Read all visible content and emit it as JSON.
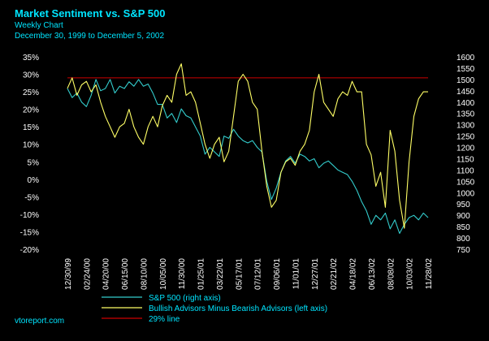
{
  "chart_data": {
    "type": "line",
    "title": "Market Sentiment vs. S&P 500",
    "subtitle": "Weekly Chart",
    "date_range": "December 30, 1999 to December 5, 2002",
    "source": "vtoreport.com",
    "x_tick_labels": [
      "12/30/99",
      "02/24/00",
      "04/20/00",
      "06/15/00",
      "08/10/00",
      "10/05/00",
      "11/30/00",
      "01/25/01",
      "03/22/01",
      "05/17/01",
      "07/12/01",
      "09/06/01",
      "11/01/01",
      "12/27/01",
      "02/21/02",
      "04/18/02",
      "06/13/02",
      "08/08/02",
      "10/03/02",
      "11/28/02"
    ],
    "left_axis": {
      "ticks": [
        "35%",
        "30%",
        "25%",
        "20%",
        "15%",
        "10%",
        "5%",
        "0%",
        "-5%",
        "-10%",
        "-15%",
        "-20%"
      ],
      "ylim": [
        -20,
        35
      ]
    },
    "right_axis": {
      "ticks": [
        "1600",
        "1550",
        "1500",
        "1450",
        "1400",
        "1350",
        "1300",
        "1250",
        "1200",
        "1150",
        "1100",
        "1050",
        "1000",
        "950",
        "900",
        "850",
        "800",
        "750"
      ],
      "ylim": [
        750,
        1600
      ]
    },
    "x_range": [
      0,
      19
    ],
    "series": [
      {
        "name": "S&P 500 (right axis)",
        "axis": "right",
        "color": "#33cccc",
        "x": [
          0,
          0.25,
          0.5,
          0.75,
          1,
          1.25,
          1.5,
          1.75,
          2,
          2.25,
          2.5,
          2.75,
          3,
          3.25,
          3.5,
          3.75,
          4,
          4.25,
          4.5,
          4.75,
          5,
          5.25,
          5.5,
          5.75,
          6,
          6.25,
          6.5,
          6.75,
          7,
          7.25,
          7.5,
          7.75,
          8,
          8.25,
          8.5,
          8.75,
          9,
          9.25,
          9.5,
          9.75,
          10,
          10.25,
          10.5,
          10.75,
          11,
          11.25,
          11.5,
          11.75,
          12,
          12.25,
          12.5,
          12.75,
          13,
          13.25,
          13.5,
          13.75,
          14,
          14.25,
          14.5,
          14.75,
          15,
          15.25,
          15.5,
          15.75,
          16,
          16.25,
          16.5,
          16.75,
          17,
          17.25,
          17.5,
          17.75,
          18,
          18.25,
          18.5,
          18.75,
          19
        ],
        "values": [
          1460,
          1420,
          1440,
          1400,
          1380,
          1430,
          1500,
          1450,
          1460,
          1500,
          1440,
          1470,
          1460,
          1490,
          1470,
          1500,
          1470,
          1480,
          1440,
          1390,
          1390,
          1330,
          1350,
          1310,
          1370,
          1340,
          1330,
          1290,
          1250,
          1170,
          1200,
          1180,
          1160,
          1250,
          1240,
          1280,
          1250,
          1230,
          1220,
          1230,
          1200,
          1180,
          1050,
          970,
          1020,
          1090,
          1140,
          1160,
          1130,
          1170,
          1160,
          1140,
          1150,
          1110,
          1130,
          1140,
          1120,
          1100,
          1090,
          1080,
          1050,
          1010,
          960,
          920,
          860,
          900,
          880,
          910,
          840,
          880,
          820,
          860,
          890,
          900,
          880,
          910,
          890
        ]
      },
      {
        "name": "Bullish Advisors Minus Bearish Advisors (left axis)",
        "axis": "left",
        "color": "#ffff66",
        "x": [
          0,
          0.25,
          0.5,
          0.75,
          1,
          1.25,
          1.5,
          1.75,
          2,
          2.25,
          2.5,
          2.75,
          3,
          3.25,
          3.5,
          3.75,
          4,
          4.25,
          4.5,
          4.75,
          5,
          5.25,
          5.5,
          5.75,
          6,
          6.25,
          6.5,
          6.75,
          7,
          7.25,
          7.5,
          7.75,
          8,
          8.25,
          8.5,
          8.75,
          9,
          9.25,
          9.5,
          9.75,
          10,
          10.25,
          10.5,
          10.75,
          11,
          11.25,
          11.5,
          11.75,
          12,
          12.25,
          12.5,
          12.75,
          13,
          13.25,
          13.5,
          13.75,
          14,
          14.25,
          14.5,
          14.75,
          15,
          15.25,
          15.5,
          15.75,
          16,
          16.25,
          16.5,
          16.75,
          17,
          17.25,
          17.5,
          17.75,
          18,
          18.25,
          18.5,
          18.75,
          19
        ],
        "values": [
          26,
          29,
          24,
          27,
          28,
          25,
          27,
          22,
          18,
          15,
          12,
          15,
          16,
          20,
          15,
          12,
          10,
          15,
          18,
          15,
          21,
          24,
          22,
          30,
          33,
          24,
          25,
          22,
          16,
          10,
          6,
          10,
          12,
          5,
          8,
          18,
          28,
          30,
          28,
          22,
          20,
          8,
          -2,
          -8,
          -6,
          2,
          5,
          6,
          4,
          8,
          10,
          14,
          25,
          30,
          22,
          20,
          18,
          23,
          25,
          24,
          28,
          25,
          25,
          10,
          7,
          -2,
          2,
          -8,
          14,
          8,
          -6,
          -14,
          5,
          18,
          23,
          25,
          25
        ]
      }
    ],
    "reference_line": {
      "name": "29% line",
      "value": 29,
      "axis": "left",
      "color": "#cc0000"
    },
    "legend": [
      {
        "label": "S&P 500 (right axis)",
        "color": "#33cccc"
      },
      {
        "label": "Bullish Advisors Minus Bearish Advisors (left axis)",
        "color": "#ffff66"
      },
      {
        "label": "29% line",
        "color": "#cc0000"
      }
    ],
    "grid": false,
    "legend_position": "bottom"
  }
}
